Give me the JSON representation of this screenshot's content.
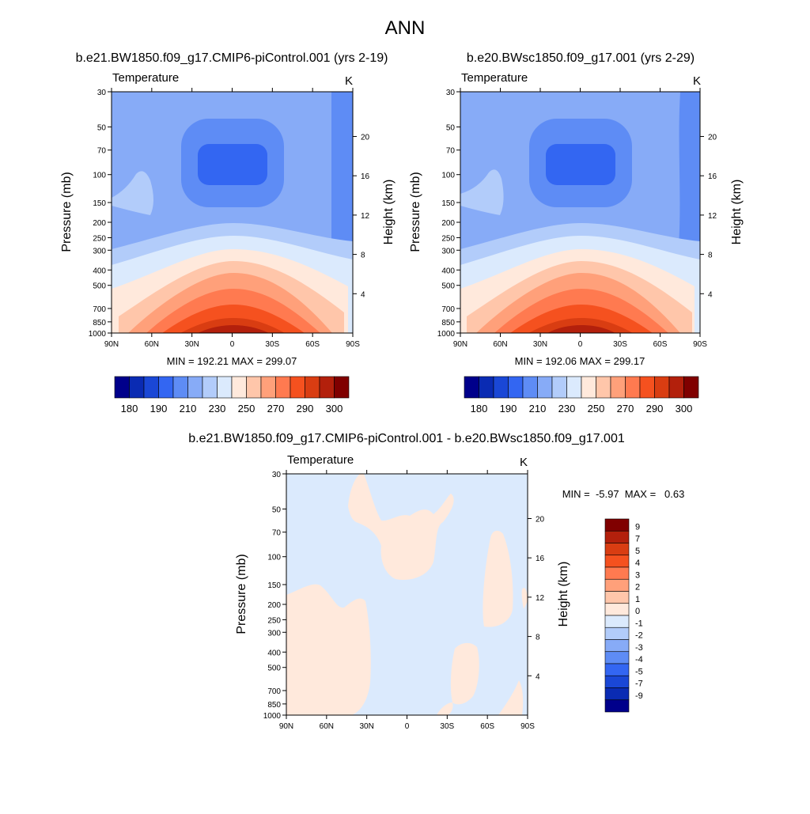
{
  "figure": {
    "title": "ANN"
  },
  "chart_data": [
    {
      "type": "heatmap",
      "variable": "Temperature",
      "units": "K",
      "title": "b.e21.BW1850.f09_g17.CMIP6-piControl.001 (yrs 2-19)",
      "xlabel": "",
      "ylabel": "Pressure (mb)",
      "y2label": "Height (km)",
      "x_ticks": [
        "90N",
        "60N",
        "30N",
        "0",
        "30S",
        "60S",
        "90S"
      ],
      "y_ticks": [
        "30",
        "50",
        "70",
        "100",
        "150",
        "200",
        "250",
        "300",
        "400",
        "500",
        "700",
        "850",
        "1000"
      ],
      "y2_ticks": [
        "20",
        "16",
        "12",
        "8",
        "4"
      ],
      "ylim": [
        1000,
        30
      ],
      "y_scale": "log",
      "stats": "MIN = 192.21  MAX = 299.07",
      "min": 192.21,
      "max": 299.07,
      "colorbar": {
        "orientation": "horizontal",
        "labels": [
          "180",
          "190",
          "210",
          "230",
          "250",
          "270",
          "290",
          "300"
        ],
        "colors": [
          "#00008b",
          "#0a2bb3",
          "#1a47d6",
          "#3366f2",
          "#5e8cf5",
          "#87abf7",
          "#b2ccfa",
          "#dbeafd",
          "#ffe9dc",
          "#ffc6aa",
          "#ffa07a",
          "#ff7a50",
          "#f5511f",
          "#d93d12",
          "#b3200c",
          "#800000"
        ]
      }
    },
    {
      "type": "heatmap",
      "variable": "Temperature",
      "units": "K",
      "title": "b.e20.BWsc1850.f09_g17.001 (yrs 2-29)",
      "xlabel": "",
      "ylabel": "Pressure (mb)",
      "y2label": "Height (km)",
      "x_ticks": [
        "90N",
        "60N",
        "30N",
        "0",
        "30S",
        "60S",
        "90S"
      ],
      "y_ticks": [
        "30",
        "50",
        "70",
        "100",
        "150",
        "200",
        "250",
        "300",
        "400",
        "500",
        "700",
        "850",
        "1000"
      ],
      "y2_ticks": [
        "20",
        "16",
        "12",
        "8",
        "4"
      ],
      "ylim": [
        1000,
        30
      ],
      "y_scale": "log",
      "stats": "MIN = 192.06  MAX = 299.17",
      "min": 192.06,
      "max": 299.17,
      "colorbar": {
        "orientation": "horizontal",
        "labels": [
          "180",
          "190",
          "210",
          "230",
          "250",
          "270",
          "290",
          "300"
        ],
        "colors": [
          "#00008b",
          "#0a2bb3",
          "#1a47d6",
          "#3366f2",
          "#5e8cf5",
          "#87abf7",
          "#b2ccfa",
          "#dbeafd",
          "#ffe9dc",
          "#ffc6aa",
          "#ffa07a",
          "#ff7a50",
          "#f5511f",
          "#d93d12",
          "#b3200c",
          "#800000"
        ]
      }
    },
    {
      "type": "heatmap",
      "variable": "Temperature",
      "units": "K",
      "title": "b.e21.BW1850.f09_g17.CMIP6-piControl.001 - b.e20.BWsc1850.f09_g17.001",
      "xlabel": "",
      "ylabel": "Pressure (mb)",
      "y2label": "Height (km)",
      "x_ticks": [
        "90N",
        "60N",
        "30N",
        "0",
        "30S",
        "60S",
        "90S"
      ],
      "y_ticks": [
        "30",
        "50",
        "70",
        "100",
        "150",
        "200",
        "250",
        "300",
        "400",
        "500",
        "700",
        "850",
        "1000"
      ],
      "y2_ticks": [
        "20",
        "16",
        "12",
        "8",
        "4"
      ],
      "ylim": [
        1000,
        30
      ],
      "y_scale": "log",
      "stats": "MIN =  -5.97  MAX =   0.63",
      "min": -5.97,
      "max": 0.63,
      "colorbar": {
        "orientation": "vertical",
        "labels": [
          "9",
          "7",
          "5",
          "4",
          "3",
          "2",
          "1",
          "0",
          "-1",
          "-2",
          "-3",
          "-4",
          "-5",
          "-7",
          "-9"
        ],
        "colors": [
          "#800000",
          "#b3200c",
          "#d93d12",
          "#f5511f",
          "#ff7a50",
          "#ffa07a",
          "#ffc6aa",
          "#ffe9dc",
          "#dbeafd",
          "#b2ccfa",
          "#87abf7",
          "#5e8cf5",
          "#3366f2",
          "#1a47d6",
          "#0a2bb3",
          "#00008b"
        ]
      }
    }
  ]
}
